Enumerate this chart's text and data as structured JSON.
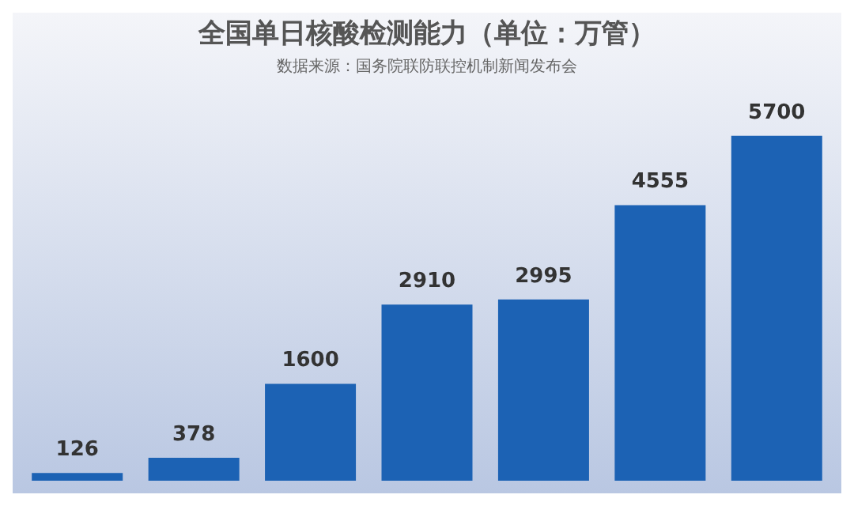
{
  "chart_data": {
    "type": "bar",
    "title": "全国单日核酸检测能力（单位：万管）",
    "subtitle": "数据来源：国务院联防联控机制新闻发布会",
    "categories": [
      null,
      null,
      null,
      null,
      null,
      null,
      null
    ],
    "values": [
      126,
      378,
      1600,
      2910,
      2995,
      4555,
      5700
    ],
    "color": "#1c62b4",
    "data_labels": true,
    "grid": false,
    "legend": false
  }
}
